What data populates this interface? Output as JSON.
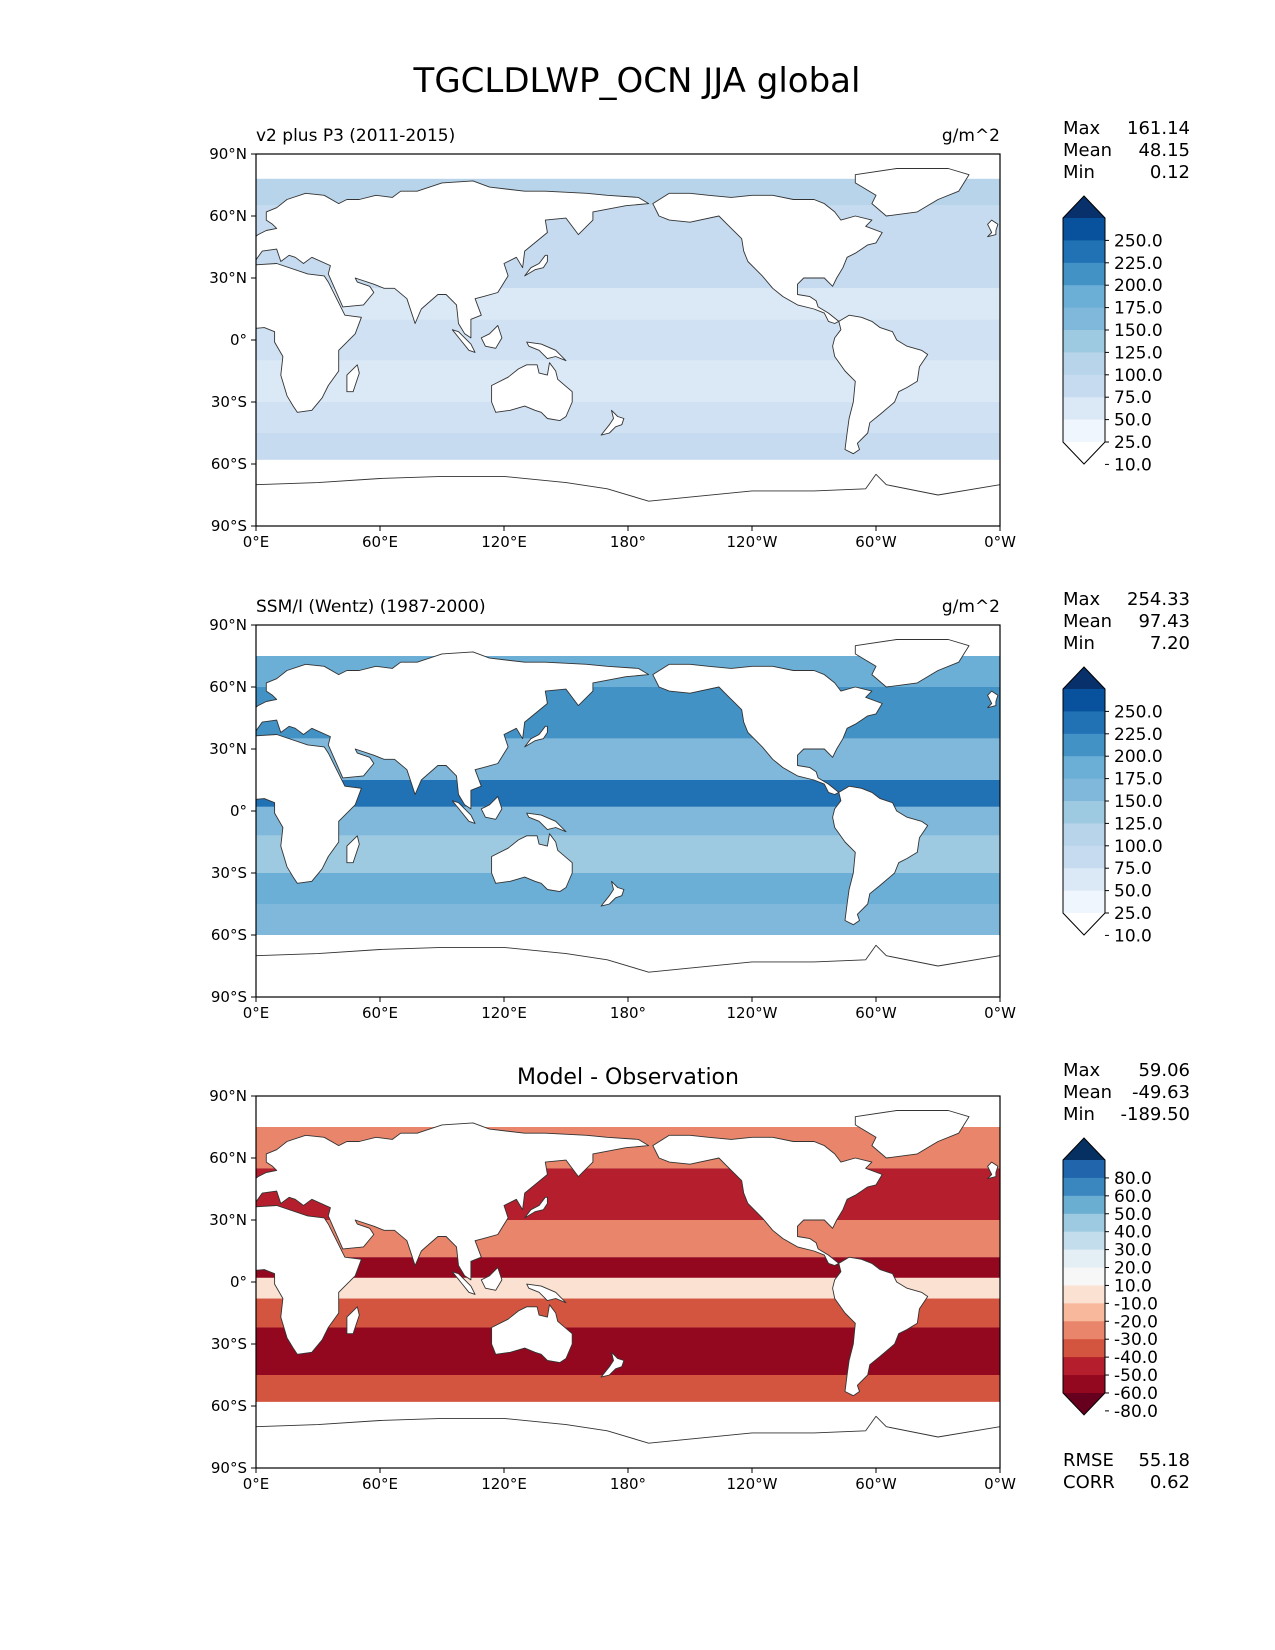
{
  "figure": {
    "title": "TGCLDLWP_OCN JJA global"
  },
  "chart_data": [
    {
      "type": "map",
      "name": "model",
      "title_left": "v2 plus P3 (2011-2015)",
      "title_center": "",
      "units": "g/m^2",
      "xlabel": "",
      "ylabel": "",
      "xlim": [
        0,
        360
      ],
      "ylim": [
        -90,
        90
      ],
      "x_ticks": [
        "0°E",
        "60°E",
        "120°E",
        "180°",
        "120°W",
        "60°W",
        "0°W"
      ],
      "y_ticks": [
        "90°N",
        "60°N",
        "30°N",
        "0°",
        "30°S",
        "60°S",
        "90°S"
      ],
      "stats": [
        {
          "label": "Max",
          "value": "161.14"
        },
        {
          "label": "Mean",
          "value": "48.15"
        },
        {
          "label": "Min",
          "value": "0.12"
        }
      ],
      "colorbar": {
        "levels": [
          "250.0",
          "225.0",
          "200.0",
          "175.0",
          "150.0",
          "125.0",
          "100.0",
          "75.0",
          "50.0",
          "25.0",
          "10.0"
        ],
        "colors": [
          "#08306b",
          "#08519c",
          "#2171b5",
          "#4292c6",
          "#6baed6",
          "#7fb8da",
          "#9ecae1",
          "#b7d4ea",
          "#c6dbef",
          "#dbe9f6",
          "#f0f6fd",
          "#ffffff"
        ]
      },
      "ocean_bands": [
        {
          "lat": [
            65,
            78
          ],
          "color": "#b7d4ea"
        },
        {
          "lat": [
            45,
            65
          ],
          "color": "#c6dbef"
        },
        {
          "lat": [
            25,
            45
          ],
          "color": "#c6dbef"
        },
        {
          "lat": [
            10,
            25
          ],
          "color": "#dbe9f6"
        },
        {
          "lat": [
            -10,
            10
          ],
          "color": "#cfe1f2"
        },
        {
          "lat": [
            -30,
            -10
          ],
          "color": "#dbe9f6"
        },
        {
          "lat": [
            -45,
            -30
          ],
          "color": "#cfe1f2"
        },
        {
          "lat": [
            -58,
            -45
          ],
          "color": "#c6dbef"
        }
      ]
    },
    {
      "type": "map",
      "name": "observation",
      "title_left": "SSM/I (Wentz) (1987-2000)",
      "title_center": "",
      "units": "g/m^2",
      "xlabel": "",
      "ylabel": "",
      "xlim": [
        0,
        360
      ],
      "ylim": [
        -90,
        90
      ],
      "x_ticks": [
        "0°E",
        "60°E",
        "120°E",
        "180°",
        "120°W",
        "60°W",
        "0°W"
      ],
      "y_ticks": [
        "90°N",
        "60°N",
        "30°N",
        "0°",
        "30°S",
        "60°S",
        "90°S"
      ],
      "stats": [
        {
          "label": "Max",
          "value": "254.33"
        },
        {
          "label": "Mean",
          "value": "97.43"
        },
        {
          "label": "Min",
          "value": "7.20"
        }
      ],
      "colorbar": {
        "levels": [
          "250.0",
          "225.0",
          "200.0",
          "175.0",
          "150.0",
          "125.0",
          "100.0",
          "75.0",
          "50.0",
          "25.0",
          "10.0"
        ],
        "colors": [
          "#08306b",
          "#08519c",
          "#2171b5",
          "#4292c6",
          "#6baed6",
          "#7fb8da",
          "#9ecae1",
          "#b7d4ea",
          "#c6dbef",
          "#dbe9f6",
          "#f0f6fd",
          "#ffffff"
        ]
      },
      "ocean_bands": [
        {
          "lat": [
            60,
            75
          ],
          "color": "#6baed6"
        },
        {
          "lat": [
            35,
            60
          ],
          "color": "#4292c6"
        },
        {
          "lat": [
            15,
            35
          ],
          "color": "#7fb8da"
        },
        {
          "lat": [
            2,
            15
          ],
          "color": "#2171b5"
        },
        {
          "lat": [
            -12,
            2
          ],
          "color": "#7fb8da"
        },
        {
          "lat": [
            -30,
            -12
          ],
          "color": "#9ecae1"
        },
        {
          "lat": [
            -45,
            -30
          ],
          "color": "#6baed6"
        },
        {
          "lat": [
            -60,
            -45
          ],
          "color": "#7fb8da"
        }
      ]
    },
    {
      "type": "map",
      "name": "difference",
      "title_left": "",
      "title_center": "Model - Observation",
      "units": "",
      "xlabel": "",
      "ylabel": "",
      "xlim": [
        0,
        360
      ],
      "ylim": [
        -90,
        90
      ],
      "x_ticks": [
        "0°E",
        "60°E",
        "120°E",
        "180°",
        "120°W",
        "60°W",
        "0°W"
      ],
      "y_ticks": [
        "90°N",
        "60°N",
        "30°N",
        "0°",
        "30°S",
        "60°S",
        "90°S"
      ],
      "stats": [
        {
          "label": "Max",
          "value": "59.06"
        },
        {
          "label": "Mean",
          "value": "-49.63"
        },
        {
          "label": "Min",
          "value": "-189.50"
        }
      ],
      "extra_stats": [
        {
          "label": "RMSE",
          "value": "55.18"
        },
        {
          "label": "CORR",
          "value": "0.62"
        }
      ],
      "colorbar": {
        "levels": [
          "80.0",
          "60.0",
          "50.0",
          "40.0",
          "30.0",
          "20.0",
          "10.0",
          "-10.0",
          "-20.0",
          "-30.0",
          "-40.0",
          "-50.0",
          "-60.0",
          "-80.0"
        ],
        "colors": [
          "#053061",
          "#2166ac",
          "#3a87c0",
          "#6aaed2",
          "#9dc9e1",
          "#c4ddec",
          "#e3eef5",
          "#f7f7f7",
          "#fbe1d2",
          "#f7b89b",
          "#e8856a",
          "#d4553f",
          "#b51e2c",
          "#94081f",
          "#67001f"
        ]
      },
      "ocean_bands": [
        {
          "lat": [
            55,
            75
          ],
          "color": "#e8856a"
        },
        {
          "lat": [
            30,
            55
          ],
          "color": "#b51e2c"
        },
        {
          "lat": [
            12,
            30
          ],
          "color": "#e8856a"
        },
        {
          "lat": [
            2,
            12
          ],
          "color": "#94081f"
        },
        {
          "lat": [
            -8,
            2
          ],
          "color": "#fbe1d2"
        },
        {
          "lat": [
            -22,
            -8
          ],
          "color": "#d4553f"
        },
        {
          "lat": [
            -45,
            -22
          ],
          "color": "#94081f"
        },
        {
          "lat": [
            -58,
            -45
          ],
          "color": "#d4553f"
        }
      ]
    }
  ]
}
